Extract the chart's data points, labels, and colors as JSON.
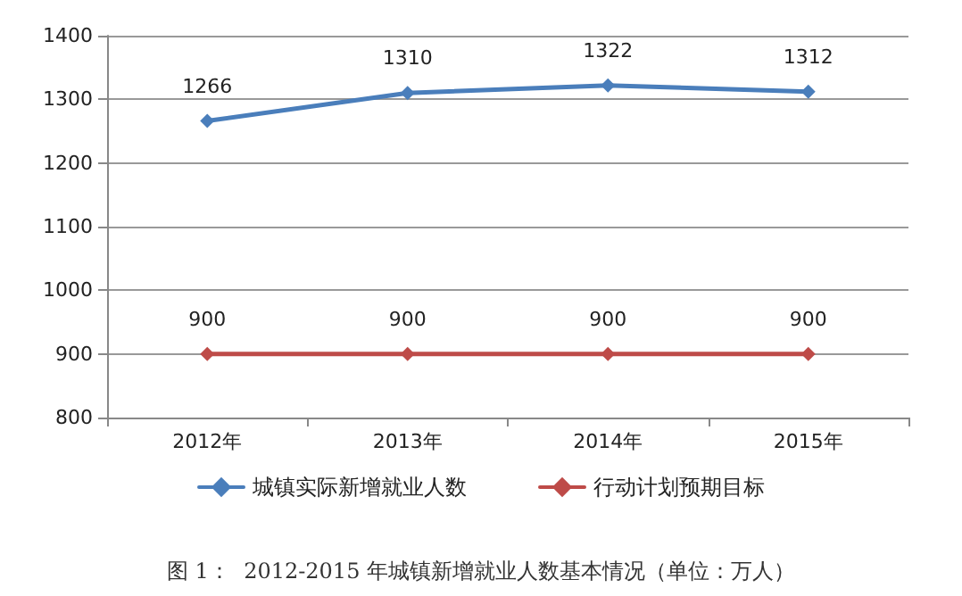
{
  "chart_data": {
    "type": "line",
    "categories": [
      "2012年",
      "2013年",
      "2014年",
      "2015年"
    ],
    "series": [
      {
        "name": "城镇实际新增就业人数",
        "color": "#4a7ebb",
        "values": [
          1266,
          1310,
          1322,
          1312
        ]
      },
      {
        "name": "行动计划预期目标",
        "color": "#be4b48",
        "values": [
          900,
          900,
          900,
          900
        ]
      }
    ],
    "ylim": [
      800,
      1400
    ],
    "yticks": [
      800,
      900,
      1000,
      1100,
      1200,
      1300,
      1400
    ],
    "grid": "y",
    "legend": "bottom",
    "marker": "diamond",
    "line_style": "solid",
    "data_labels": true,
    "annotations": [
      "图 1：  2012-2015 年城镇新增就业人数基本情况（单位：万人）"
    ]
  }
}
